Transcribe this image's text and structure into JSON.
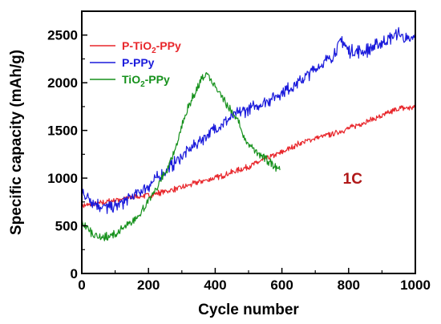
{
  "chart_data": {
    "type": "line",
    "xlabel": "Cycle number",
    "ylabel": "Specific capacity (mAh/g)",
    "xlim": [
      0,
      1000
    ],
    "ylim": [
      0,
      2750
    ],
    "xticks": [
      0,
      200,
      400,
      600,
      800,
      1000
    ],
    "yticks": [
      0,
      500,
      1000,
      1500,
      2000,
      2500
    ],
    "grid": false,
    "legend_position": "top-left",
    "annotation": {
      "text": "1C",
      "x": 800,
      "y": 1000,
      "color": "#b01818"
    },
    "series": [
      {
        "name_parts": [
          {
            "text": "P-TiO"
          },
          {
            "text": "2",
            "sub": true
          },
          {
            "text": "-PPy"
          }
        ],
        "color": "#e8262b",
        "noise": 25,
        "x": [
          0,
          30,
          60,
          100,
          150,
          200,
          250,
          300,
          350,
          400,
          450,
          500,
          550,
          600,
          650,
          700,
          750,
          800,
          850,
          900,
          950,
          1000
        ],
        "y": [
          710,
          720,
          740,
          770,
          800,
          820,
          860,
          900,
          960,
          1000,
          1060,
          1120,
          1200,
          1270,
          1360,
          1420,
          1460,
          1520,
          1590,
          1650,
          1730,
          1740
        ]
      },
      {
        "name_parts": [
          {
            "text": "P-PPy"
          }
        ],
        "color": "#1a1adb",
        "noise": 55,
        "x": [
          0,
          20,
          40,
          60,
          80,
          100,
          150,
          200,
          250,
          300,
          350,
          400,
          450,
          480,
          500,
          550,
          600,
          650,
          700,
          750,
          780,
          800,
          850,
          900,
          950,
          980,
          1000
        ],
        "y": [
          860,
          790,
          740,
          700,
          690,
          700,
          800,
          920,
          1070,
          1230,
          1380,
          1520,
          1640,
          1700,
          1720,
          1800,
          1900,
          2000,
          2150,
          2270,
          2450,
          2330,
          2330,
          2420,
          2520,
          2430,
          2480
        ]
      },
      {
        "name_parts": [
          {
            "text": "TiO"
          },
          {
            "text": "2",
            "sub": true
          },
          {
            "text": "-PPy"
          }
        ],
        "color": "#16911c",
        "noise": 40,
        "x": [
          0,
          20,
          40,
          60,
          80,
          100,
          150,
          200,
          250,
          280,
          300,
          320,
          340,
          360,
          375,
          390,
          410,
          430,
          450,
          470,
          480,
          500,
          520,
          550,
          580,
          595
        ],
        "y": [
          540,
          460,
          400,
          380,
          380,
          410,
          530,
          750,
          1050,
          1300,
          1550,
          1750,
          1900,
          2030,
          2100,
          2000,
          1900,
          1800,
          1700,
          1600,
          1460,
          1350,
          1280,
          1200,
          1130,
          1100
        ]
      }
    ]
  }
}
